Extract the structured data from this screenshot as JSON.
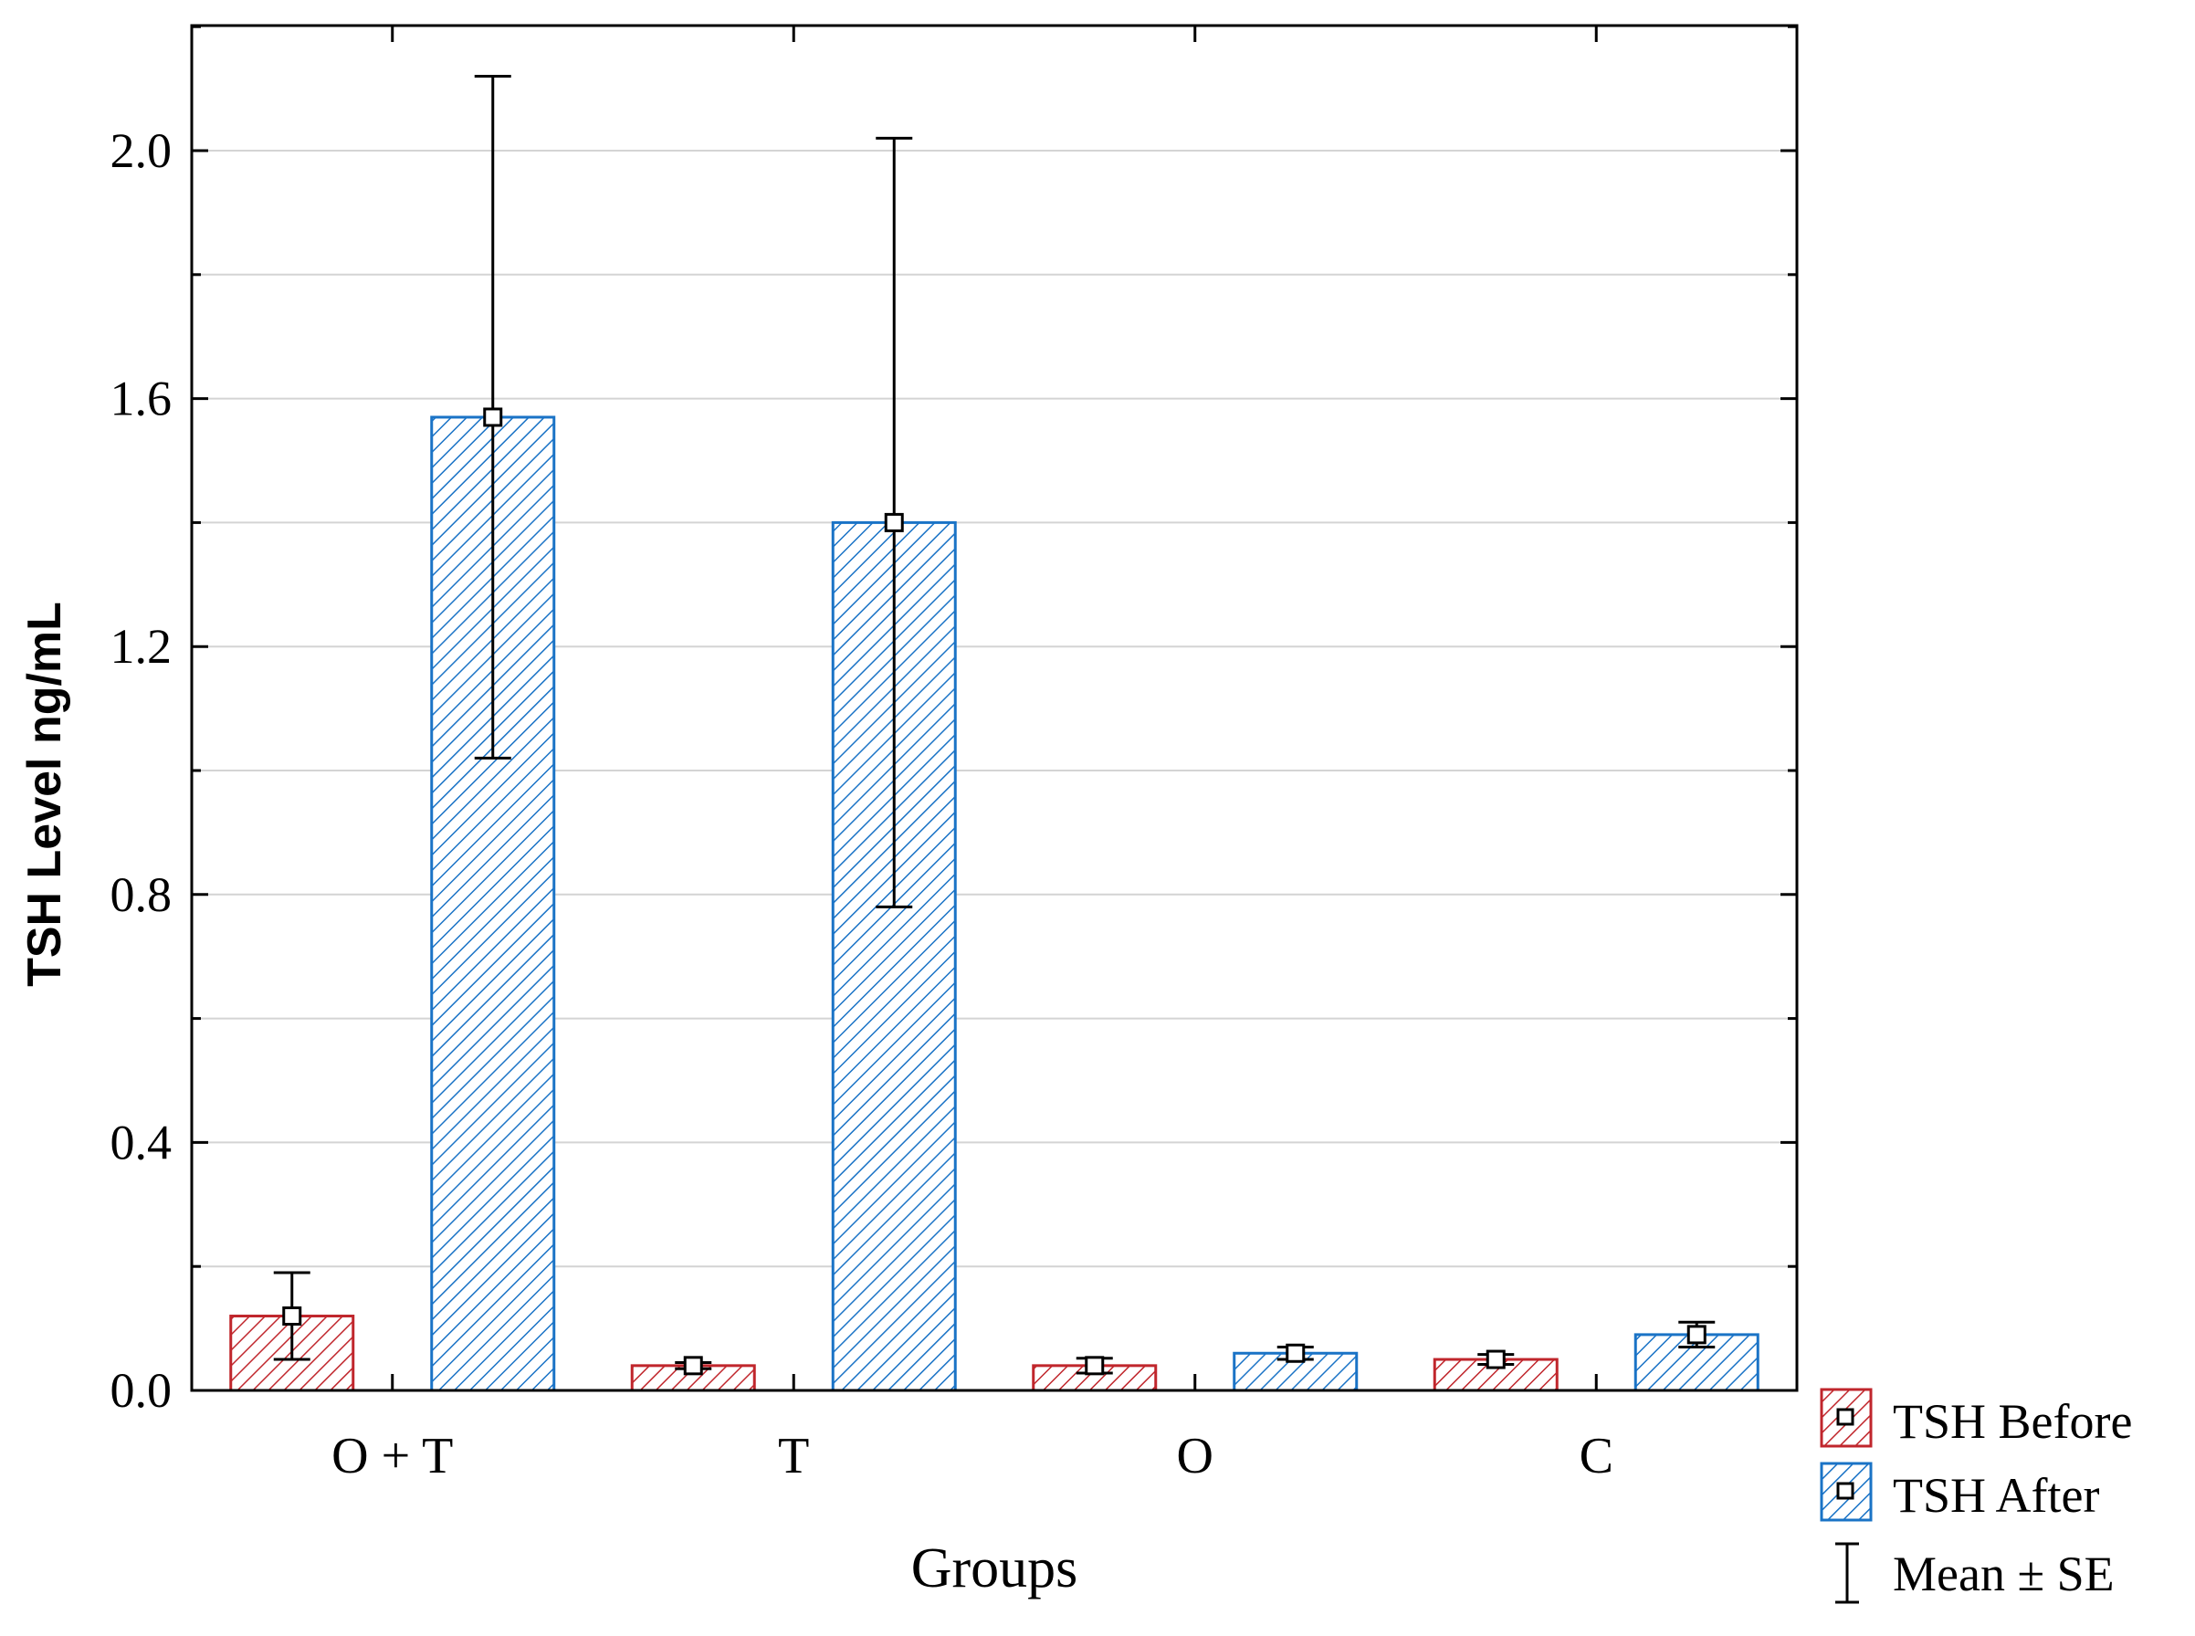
{
  "chart_data": {
    "type": "bar",
    "title": "",
    "xlabel": "Groups",
    "ylabel": "TSH Level ng/mL",
    "ylim": [
      0,
      2.2
    ],
    "yticks": [
      0.0,
      0.4,
      0.8,
      1.2,
      1.6,
      2.0
    ],
    "ytick_labels": [
      "0.0",
      "0.4",
      "0.8",
      "1.2",
      "1.6",
      "2.0"
    ],
    "grid": true,
    "categories": [
      "O + T",
      "T",
      "O",
      "C"
    ],
    "series": [
      {
        "name": "TSH Before",
        "color": "#c0262c",
        "values": [
          0.12,
          0.04,
          0.04,
          0.05
        ],
        "error": [
          0.07,
          0.005,
          0.012,
          0.008
        ]
      },
      {
        "name": "TSH After",
        "color": "#1a73c6",
        "values": [
          1.57,
          1.4,
          0.06,
          0.09
        ],
        "error": [
          0.55,
          0.62,
          0.01,
          0.02
        ]
      }
    ],
    "error_bar_label": "Mean ± SE",
    "legend_position": "bottom-right outside"
  }
}
